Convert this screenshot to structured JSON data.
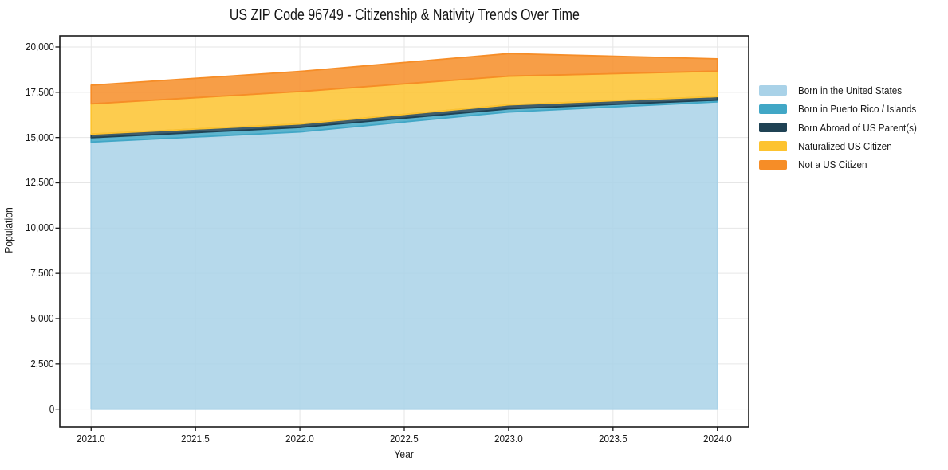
{
  "chart_data": {
    "type": "area",
    "stacked": true,
    "title": "US ZIP Code 96749 - Citizenship & Nativity Trends Over Time",
    "xlabel": "Year",
    "ylabel": "Population",
    "x": [
      2021,
      2022,
      2023,
      2024
    ],
    "series": [
      {
        "name": "Born in the United States",
        "color": "#a9d2e8",
        "values": [
          14750,
          15310,
          16410,
          16970
        ]
      },
      {
        "name": "Born in Puerto Rico / Islands",
        "color": "#41a7c6",
        "values": [
          240,
          250,
          175,
          100
        ]
      },
      {
        "name": "Born Abroad of US Parent(s)",
        "color": "#1f4254",
        "values": [
          200,
          190,
          220,
          190
        ]
      },
      {
        "name": "Naturalized US Citizen",
        "color": "#fdc32f",
        "values": [
          1670,
          1790,
          1585,
          1405
        ]
      },
      {
        "name": "Not a US Citizen",
        "color": "#f68d27",
        "values": [
          1030,
          1110,
          1245,
          680
        ]
      }
    ],
    "totals": [
      17890,
      18650,
      19635,
      19345
    ],
    "xlim": [
      2020.85,
      2024.15
    ],
    "ylim": [
      -982,
      20615
    ],
    "grid": true,
    "legend_position": "right",
    "x_ticks": [
      {
        "value": 2021.0,
        "label": "2021.0"
      },
      {
        "value": 2021.5,
        "label": "2021.5"
      },
      {
        "value": 2022.0,
        "label": "2022.0"
      },
      {
        "value": 2022.5,
        "label": "2022.5"
      },
      {
        "value": 2023.0,
        "label": "2023.0"
      },
      {
        "value": 2023.5,
        "label": "2023.5"
      },
      {
        "value": 2024.0,
        "label": "2024.0"
      }
    ],
    "y_ticks": [
      {
        "value": 0,
        "label": "0"
      },
      {
        "value": 2500,
        "label": "2,500"
      },
      {
        "value": 5000,
        "label": "5,000"
      },
      {
        "value": 7500,
        "label": "7,500"
      },
      {
        "value": 10000,
        "label": "10,000"
      },
      {
        "value": 12500,
        "label": "12,500"
      },
      {
        "value": 15000,
        "label": "15,000"
      },
      {
        "value": 17500,
        "label": "17,500"
      },
      {
        "value": 20000,
        "label": "20,000"
      }
    ],
    "style": {
      "grid_color": "#e6e6e6",
      "spine_color": "#1a1a1a",
      "fill_opacity": 0.85,
      "background": "#ffffff"
    }
  }
}
